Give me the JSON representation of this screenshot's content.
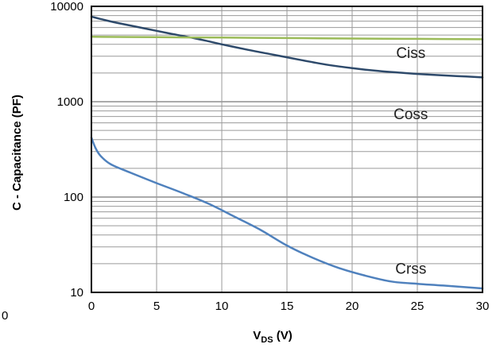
{
  "chart_data": {
    "type": "line",
    "title": "",
    "xlabel_main": "V",
    "xlabel_sub": "DS",
    "xlabel_suffix": " (V)",
    "ylabel": "C - Capacitance (PF)",
    "xlim": [
      0,
      30
    ],
    "ylim": [
      10,
      10000
    ],
    "y_scale": "log",
    "grid": true,
    "x_ticks": [
      "0",
      "5",
      "10",
      "15",
      "20",
      "25",
      "30"
    ],
    "y_ticks": [
      "10",
      "100",
      "1000",
      "10000"
    ],
    "stray_label": "0",
    "series": [
      {
        "name": "Ciss",
        "color": "#2e4a6b",
        "x": [
          0,
          1,
          2,
          4,
          6,
          8,
          10,
          12,
          14,
          16,
          18,
          20,
          22,
          24,
          26,
          28,
          30
        ],
        "y": [
          7800,
          7200,
          6700,
          5900,
          5200,
          4600,
          4000,
          3500,
          3100,
          2750,
          2450,
          2250,
          2100,
          2000,
          1920,
          1860,
          1800
        ]
      },
      {
        "name": "Coss",
        "color": "#9bbb59",
        "x": [
          0,
          5,
          10,
          15,
          20,
          25,
          30
        ],
        "y": [
          4800,
          4750,
          4700,
          4650,
          4600,
          4560,
          4520
        ]
      },
      {
        "name": "Crss",
        "color": "#4f81bd",
        "x": [
          0,
          0.3,
          0.7,
          1.5,
          3,
          5,
          7,
          9,
          11,
          13,
          15,
          17,
          19,
          21,
          23,
          25,
          27,
          30
        ],
        "y": [
          420,
          330,
          270,
          220,
          180,
          140,
          110,
          85,
          62,
          45,
          31,
          23,
          18,
          15,
          13,
          12.3,
          11.8,
          11
        ]
      }
    ],
    "annotations": [
      {
        "text": "Ciss",
        "x": 24.5,
        "y": 3300
      },
      {
        "text": "Coss",
        "x": 24.5,
        "y": 750
      },
      {
        "text": "Crss",
        "x": 24.5,
        "y": 18
      }
    ]
  }
}
